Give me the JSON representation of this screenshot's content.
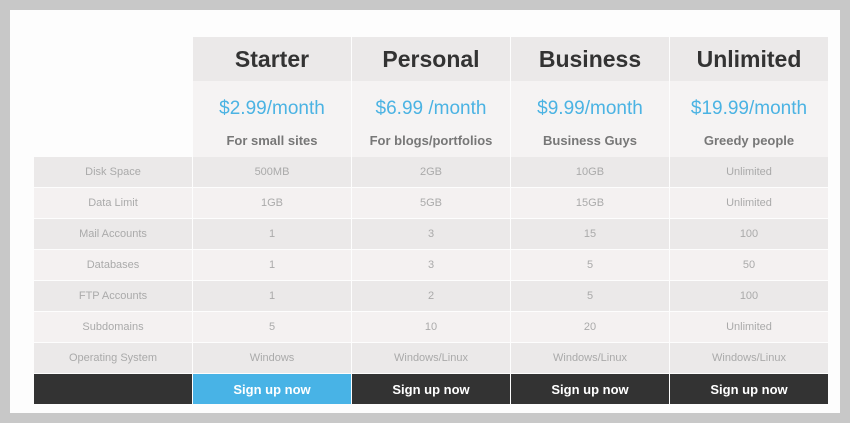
{
  "plans": [
    {
      "name": "Starter",
      "price": "$2.99/month",
      "tagline": "For small sites",
      "values": [
        "500MB",
        "1GB",
        "1",
        "1",
        "1",
        "5",
        "Windows"
      ],
      "cta": "Sign up now",
      "highlight": true
    },
    {
      "name": "Personal",
      "price": "$6.99 /month",
      "tagline": "For blogs/portfolios",
      "values": [
        "2GB",
        "5GB",
        "3",
        "3",
        "2",
        "10",
        "Windows/Linux"
      ],
      "cta": "Sign up now",
      "highlight": false
    },
    {
      "name": "Business",
      "price": "$9.99/month",
      "tagline": "Business Guys",
      "values": [
        "10GB",
        "15GB",
        "15",
        "5",
        "5",
        "20",
        "Windows/Linux"
      ],
      "cta": "Sign up now",
      "highlight": false
    },
    {
      "name": "Unlimited",
      "price": "$19.99/month",
      "tagline": "Greedy people",
      "values": [
        "Unlimited",
        "Unlimited",
        "100",
        "50",
        "100",
        "Unlimited",
        "Windows/Linux"
      ],
      "cta": "Sign up now",
      "highlight": false
    }
  ],
  "features": [
    "Disk Space",
    "Data Limit",
    "Mail Accounts",
    "Databases",
    "FTP Accounts",
    "Subdomains",
    "Operating System"
  ],
  "colors": {
    "accent": "#48b3e6",
    "price": "#4bb3e3",
    "dark_button": "#333333"
  }
}
